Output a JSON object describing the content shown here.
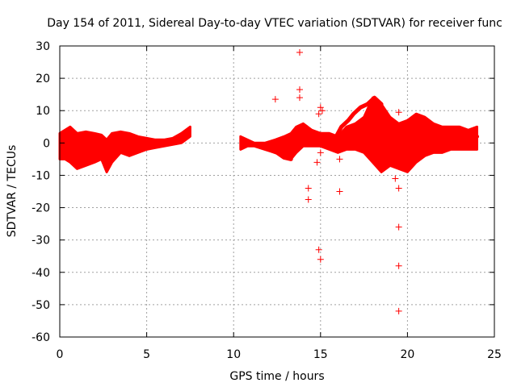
{
  "chart_data": {
    "type": "scatter",
    "title": "Day 154 of 2011, Sidereal Day-to-day VTEC variation (SDTVAR) for receiver func",
    "xlabel": "GPS time / hours",
    "ylabel": "SDTVAR / TECUs",
    "xlim": [
      0,
      25
    ],
    "ylim": [
      -60,
      30
    ],
    "xticks": [
      0,
      5,
      10,
      15,
      20,
      25
    ],
    "yticks": [
      -60,
      -50,
      -40,
      -30,
      -20,
      -10,
      0,
      10,
      20,
      30
    ],
    "grid": true,
    "marker": "+",
    "series_color": "#ff0000",
    "bands": [
      {
        "x": [
          0.0,
          0.3,
          0.6,
          1.0,
          1.5,
          2.0,
          2.4,
          2.7,
          3.0,
          3.5,
          4.0,
          4.5,
          5.0,
          5.5,
          6.0,
          6.5,
          7.0,
          7.5
        ],
        "upper": [
          3,
          4,
          5,
          3,
          3.5,
          3,
          2.5,
          1,
          3,
          3.5,
          3,
          2,
          1.5,
          1,
          1,
          1.5,
          3,
          5
        ],
        "lower": [
          -5,
          -5,
          -6,
          -8,
          -7,
          -6,
          -5,
          -9,
          -6,
          -3,
          -4,
          -3,
          -2,
          -1.5,
          -1,
          -0.5,
          0,
          2
        ]
      },
      {
        "x": [
          10.4,
          10.8,
          11.2,
          11.8,
          12.4,
          12.9,
          13.3,
          13.6,
          14.0,
          14.5,
          15.0,
          15.5,
          16.0,
          16.5,
          17.0,
          17.5,
          18.0,
          18.5,
          19.0,
          19.5,
          20.0,
          20.5,
          21.0,
          21.5,
          22.0,
          22.5,
          23.0,
          23.5,
          24.0
        ],
        "upper": [
          2,
          1,
          0,
          0,
          1,
          2,
          3,
          5,
          6,
          4,
          3,
          3,
          2,
          5,
          6,
          8,
          14,
          12,
          8,
          6,
          7,
          9,
          8,
          6,
          5,
          5,
          5,
          4,
          5
        ],
        "lower": [
          -2,
          -1,
          -1,
          -2,
          -3,
          -4,
          -5,
          -3,
          -1,
          -1,
          -1,
          -2,
          -3,
          -2,
          -2,
          -3,
          -6,
          -9,
          -7,
          -8,
          -9,
          -6,
          -4,
          -3,
          -3,
          -2,
          -2,
          -2,
          -2
        ]
      }
    ],
    "segments": [
      {
        "x": [
          12.0,
          12.5,
          12.9,
          13.3
        ],
        "y": [
          -2,
          -3,
          -4.5,
          -5
        ]
      },
      {
        "x": [
          13.2,
          13.7,
          14.2,
          14.8,
          15.2,
          15.8,
          16.3,
          16.8,
          17.3,
          17.8
        ],
        "y": [
          0,
          3,
          4,
          3,
          2.5,
          1.5,
          0.5,
          -0.5,
          -1.5,
          -2.5
        ]
      },
      {
        "x": [
          15.8,
          16.2,
          16.6,
          16.9,
          17.3,
          17.7,
          18.1,
          18.5
        ],
        "y": [
          1,
          5,
          7,
          9,
          11,
          12,
          14,
          12
        ]
      },
      {
        "x": [
          18.0,
          18.6,
          19.0,
          19.5,
          20.0,
          20.5,
          21.2,
          22.0,
          23.0,
          24.0
        ],
        "y": [
          3,
          1,
          -1,
          -4,
          -7,
          -4,
          -2,
          0,
          1,
          2
        ]
      }
    ],
    "outliers": {
      "x": [
        13.8,
        13.8,
        13.8,
        12.4,
        14.3,
        14.3,
        14.9,
        15.0,
        15.0,
        14.9,
        15.1,
        14.8,
        16.1,
        16.1,
        19.5,
        19.5,
        19.5,
        19.5,
        19.5,
        19.3,
        18.5,
        15.0
      ],
      "y": [
        28,
        16.5,
        14,
        13.5,
        -14,
        -17.5,
        -33,
        -36,
        11,
        9,
        10,
        -6,
        -15,
        -5,
        9.5,
        -14,
        -26,
        -38,
        -52,
        -11,
        -8,
        -3
      ]
    }
  }
}
